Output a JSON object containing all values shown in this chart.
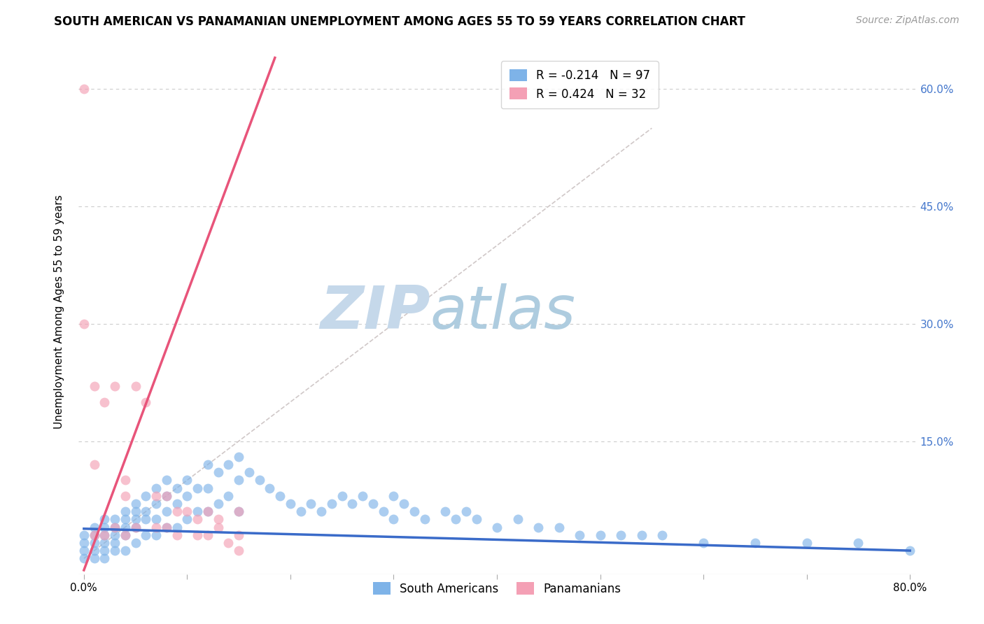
{
  "title": "SOUTH AMERICAN VS PANAMANIAN UNEMPLOYMENT AMONG AGES 55 TO 59 YEARS CORRELATION CHART",
  "source": "Source: ZipAtlas.com",
  "ylabel": "Unemployment Among Ages 55 to 59 years",
  "xlim": [
    -0.005,
    0.805
  ],
  "ylim": [
    -0.02,
    0.65
  ],
  "xticks": [
    0.0,
    0.1,
    0.2,
    0.3,
    0.4,
    0.5,
    0.6,
    0.7,
    0.8
  ],
  "xticklabels": [
    "0.0%",
    "",
    "",
    "",
    "",
    "",
    "",
    "",
    "80.0%"
  ],
  "yticks": [
    0.0,
    0.15,
    0.3,
    0.45,
    0.6
  ],
  "yticklabels_right": [
    "",
    "15.0%",
    "30.0%",
    "45.0%",
    "60.0%"
  ],
  "blue_color": "#7EB3E8",
  "pink_color": "#F4A0B5",
  "blue_line_color": "#3A6BC9",
  "pink_line_color": "#E8547A",
  "diag_line_color": "#D0C8C8",
  "legend_r_blue": "-0.214",
  "legend_n_blue": "97",
  "legend_r_pink": "0.424",
  "legend_n_pink": "32",
  "blue_scatter_x": [
    0.0,
    0.0,
    0.0,
    0.0,
    0.01,
    0.01,
    0.01,
    0.01,
    0.01,
    0.02,
    0.02,
    0.02,
    0.02,
    0.02,
    0.02,
    0.03,
    0.03,
    0.03,
    0.03,
    0.03,
    0.04,
    0.04,
    0.04,
    0.04,
    0.04,
    0.05,
    0.05,
    0.05,
    0.05,
    0.05,
    0.06,
    0.06,
    0.06,
    0.06,
    0.07,
    0.07,
    0.07,
    0.07,
    0.08,
    0.08,
    0.08,
    0.08,
    0.09,
    0.09,
    0.09,
    0.1,
    0.1,
    0.1,
    0.11,
    0.11,
    0.12,
    0.12,
    0.12,
    0.13,
    0.13,
    0.14,
    0.14,
    0.15,
    0.15,
    0.15,
    0.16,
    0.17,
    0.18,
    0.19,
    0.2,
    0.21,
    0.22,
    0.23,
    0.24,
    0.25,
    0.26,
    0.27,
    0.28,
    0.29,
    0.3,
    0.3,
    0.31,
    0.32,
    0.33,
    0.35,
    0.36,
    0.37,
    0.38,
    0.4,
    0.42,
    0.44,
    0.46,
    0.48,
    0.5,
    0.52,
    0.54,
    0.56,
    0.6,
    0.65,
    0.7,
    0.75,
    0.8
  ],
  "blue_scatter_y": [
    0.03,
    0.02,
    0.01,
    0.0,
    0.04,
    0.03,
    0.02,
    0.01,
    0.0,
    0.05,
    0.04,
    0.03,
    0.02,
    0.01,
    0.0,
    0.05,
    0.04,
    0.03,
    0.02,
    0.01,
    0.06,
    0.05,
    0.04,
    0.03,
    0.01,
    0.07,
    0.06,
    0.05,
    0.04,
    0.02,
    0.08,
    0.06,
    0.05,
    0.03,
    0.09,
    0.07,
    0.05,
    0.03,
    0.1,
    0.08,
    0.06,
    0.04,
    0.09,
    0.07,
    0.04,
    0.1,
    0.08,
    0.05,
    0.09,
    0.06,
    0.12,
    0.09,
    0.06,
    0.11,
    0.07,
    0.12,
    0.08,
    0.13,
    0.1,
    0.06,
    0.11,
    0.1,
    0.09,
    0.08,
    0.07,
    0.06,
    0.07,
    0.06,
    0.07,
    0.08,
    0.07,
    0.08,
    0.07,
    0.06,
    0.08,
    0.05,
    0.07,
    0.06,
    0.05,
    0.06,
    0.05,
    0.06,
    0.05,
    0.04,
    0.05,
    0.04,
    0.04,
    0.03,
    0.03,
    0.03,
    0.03,
    0.03,
    0.02,
    0.02,
    0.02,
    0.02,
    0.01
  ],
  "pink_scatter_x": [
    0.0,
    0.0,
    0.01,
    0.01,
    0.01,
    0.02,
    0.02,
    0.03,
    0.03,
    0.04,
    0.04,
    0.04,
    0.05,
    0.05,
    0.06,
    0.07,
    0.07,
    0.08,
    0.08,
    0.09,
    0.09,
    0.1,
    0.11,
    0.11,
    0.12,
    0.12,
    0.13,
    0.13,
    0.14,
    0.15,
    0.15,
    0.15
  ],
  "pink_scatter_y": [
    0.6,
    0.3,
    0.22,
    0.12,
    0.03,
    0.2,
    0.03,
    0.22,
    0.04,
    0.1,
    0.08,
    0.03,
    0.22,
    0.04,
    0.2,
    0.08,
    0.04,
    0.08,
    0.04,
    0.06,
    0.03,
    0.06,
    0.05,
    0.03,
    0.06,
    0.03,
    0.05,
    0.04,
    0.02,
    0.06,
    0.03,
    0.01
  ],
  "blue_trend_x": [
    0.0,
    0.8
  ],
  "blue_trend_y": [
    0.038,
    0.01
  ],
  "pink_trend_x": [
    0.0,
    0.185
  ],
  "pink_trend_y": [
    -0.015,
    0.64
  ],
  "diag_line_x": [
    0.0,
    0.55
  ],
  "diag_line_y": [
    0.0,
    0.55
  ],
  "title_fontsize": 12,
  "source_fontsize": 10,
  "label_fontsize": 11,
  "tick_fontsize": 11,
  "background_color": "#FFFFFF",
  "grid_color": "#CCCCCC",
  "ytick_color": "#4477CC",
  "watermark_zip_color": "#C8D8E8",
  "watermark_atlas_color": "#B8CCE0"
}
